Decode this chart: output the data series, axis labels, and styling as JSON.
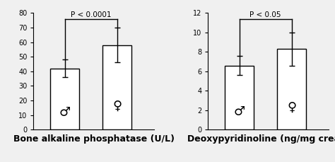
{
  "chart1": {
    "title": "Bone alkaline phosphatase (U/L)",
    "values": [
      42,
      58
    ],
    "errors": [
      6,
      12
    ],
    "ylim": [
      0,
      80
    ],
    "yticks": [
      0,
      10,
      20,
      30,
      40,
      50,
      60,
      70,
      80
    ],
    "significance": "P < 0.0001",
    "bracket_left_y": 48,
    "bracket_right_y": 70,
    "bracket_top": 76
  },
  "chart2": {
    "title": "Deoxypyridinoline (ng/mg creat)",
    "values": [
      6.6,
      8.3
    ],
    "errors": [
      1.0,
      1.7
    ],
    "ylim": [
      0,
      12
    ],
    "yticks": [
      0,
      2,
      4,
      6,
      8,
      10,
      12
    ],
    "significance": "P < 0.05",
    "bracket_left_y": 7.6,
    "bracket_right_y": 10.0,
    "bracket_top": 11.4
  },
  "bar_color": "white",
  "bar_edgecolor": "black",
  "bar_width": 0.55,
  "background_color": "#f0f0f0",
  "xlabel_fontsize": 9,
  "tick_fontsize": 7,
  "symbol_fontsize": 13,
  "sig_fontsize": 7.5,
  "x_positions": [
    0.7,
    1.7
  ],
  "xlim": [
    0.1,
    2.4
  ]
}
